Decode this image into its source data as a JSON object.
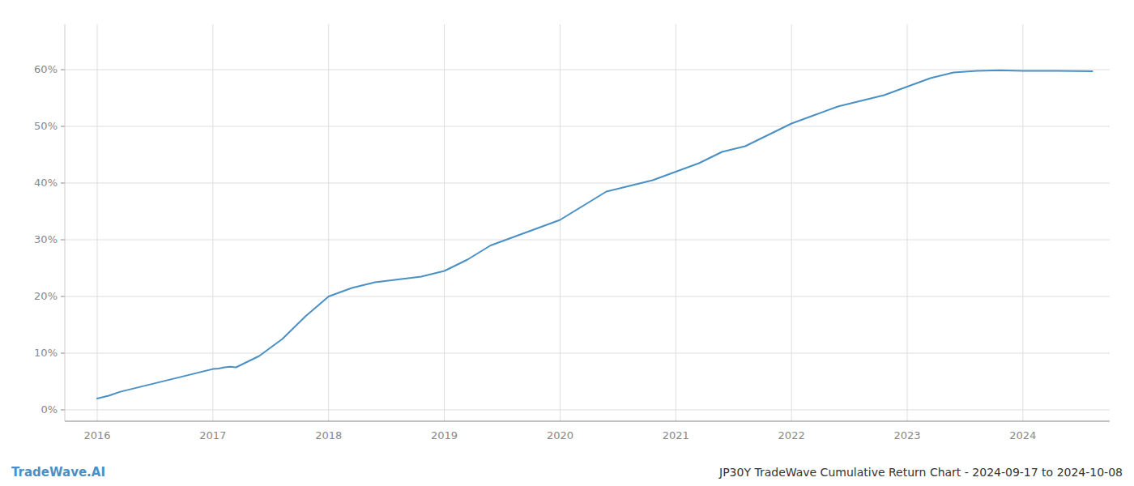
{
  "chart_data": {
    "type": "line",
    "title": "JP30Y TradeWave Cumulative Return Chart - 2024-09-17 to 2024-10-08",
    "annotations": [
      "TradeWave.AI"
    ],
    "color": "#4a90c4",
    "grid": true,
    "x": [
      2016.0,
      2016.1,
      2016.2,
      2016.4,
      2016.6,
      2016.8,
      2017.0,
      2017.05,
      2017.1,
      2017.15,
      2017.2,
      2017.4,
      2017.6,
      2017.8,
      2018.0,
      2018.2,
      2018.4,
      2018.6,
      2018.8,
      2019.0,
      2019.2,
      2019.4,
      2019.6,
      2019.8,
      2020.0,
      2020.2,
      2020.4,
      2020.6,
      2020.8,
      2021.0,
      2021.2,
      2021.4,
      2021.6,
      2021.8,
      2022.0,
      2022.2,
      2022.4,
      2022.6,
      2022.8,
      2023.0,
      2023.2,
      2023.4,
      2023.6,
      2023.8,
      2024.0,
      2024.3,
      2024.6
    ],
    "values": [
      2.0,
      2.5,
      3.2,
      4.2,
      5.2,
      6.2,
      7.2,
      7.3,
      7.5,
      7.6,
      7.5,
      9.5,
      12.5,
      16.5,
      20.0,
      21.5,
      22.5,
      23.0,
      23.5,
      24.5,
      26.5,
      29.0,
      30.5,
      32.0,
      33.5,
      36.0,
      38.5,
      39.5,
      40.5,
      42.0,
      43.5,
      45.5,
      46.5,
      48.5,
      50.5,
      52.0,
      53.5,
      54.5,
      55.5,
      57.0,
      58.5,
      59.5,
      59.8,
      59.9,
      59.8,
      59.8,
      59.7
    ],
    "xlim": [
      2015.72,
      2024.75
    ],
    "xticks": [
      2016,
      2017,
      2018,
      2019,
      2020,
      2021,
      2022,
      2023,
      2024
    ],
    "ylim": [
      -2,
      68
    ],
    "yticks": [
      {
        "value": 0,
        "label": "0%"
      },
      {
        "value": 10,
        "label": "10%"
      },
      {
        "value": 20,
        "label": "20%"
      },
      {
        "value": 30,
        "label": "30%"
      },
      {
        "value": 40,
        "label": "40%"
      },
      {
        "value": 50,
        "label": "50%"
      },
      {
        "value": 60,
        "label": "60%"
      }
    ]
  }
}
